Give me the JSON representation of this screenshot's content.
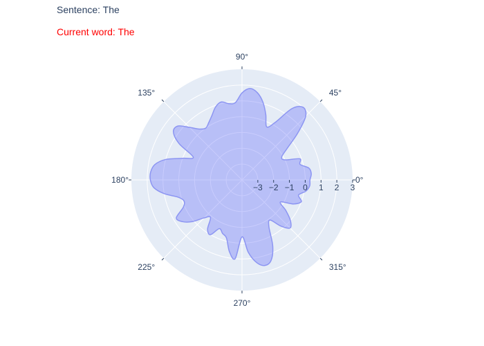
{
  "annotations": {
    "sentence": "Sentence: The",
    "current_word": "Current word: The"
  },
  "colors": {
    "polar_bg": "#e5ecf6",
    "grid": "#ffffff",
    "fill": "rgba(99,110,250,0.35)",
    "line": "#8c95f2",
    "text": "#2a3f5f",
    "current_word": "#ff0000"
  },
  "chart_data": {
    "type": "area",
    "subtype": "polar",
    "title": "",
    "radial_range": [
      -4,
      3
    ],
    "radial_ticks": [
      -3,
      -2,
      -1,
      0,
      1,
      2,
      3
    ],
    "radial_tick_labels": [
      "−3",
      "−2",
      "−1",
      "0",
      "1",
      "2",
      "3"
    ],
    "angular_ticks": [
      0,
      45,
      90,
      135,
      180,
      225,
      270,
      315
    ],
    "angular_tick_labels": [
      "0°",
      "45°",
      "90°",
      "135°",
      "180°",
      "225°",
      "270°",
      "315°"
    ],
    "grid": true,
    "series": [
      {
        "theta": [
          0,
          5,
          10,
          15,
          20,
          25,
          30,
          35,
          40,
          45,
          50,
          55,
          60,
          65,
          70,
          75,
          80,
          85,
          90,
          95,
          100,
          105,
          110,
          115,
          120,
          125,
          130,
          135,
          140,
          145,
          150,
          155,
          160,
          165,
          170,
          175,
          180,
          185,
          190,
          195,
          200,
          205,
          210,
          215,
          220,
          225,
          230,
          235,
          240,
          245,
          250,
          255,
          260,
          265,
          270,
          275,
          280,
          285,
          290,
          295,
          300,
          305,
          310,
          315,
          320,
          325,
          330,
          335,
          340,
          345,
          350,
          355
        ],
        "r": [
          0.3,
          0.4,
          0.3,
          -0.2,
          -0.1,
          -1.0,
          -1.1,
          -0.5,
          0.6,
          1.7,
          2.0,
          1.5,
          0.2,
          -0.3,
          0.4,
          1.1,
          1.6,
          1.8,
          1.5,
          0.9,
          0.9,
          1.1,
          0.9,
          0.5,
          0.2,
          0.0,
          0.2,
          0.7,
          1.3,
          1.3,
          0.6,
          -0.6,
          0.0,
          1.0,
          1.6,
          1.8,
          1.8,
          1.6,
          1.0,
          0.2,
          -0.1,
          0.1,
          0.8,
          0.6,
          0.1,
          -0.6,
          -0.9,
          -0.2,
          0.0,
          -0.6,
          -0.4,
          -0.2,
          0.6,
          1.0,
          -0.4,
          0.6,
          1.3,
          1.6,
          1.4,
          0.6,
          -0.6,
          -0.9,
          -0.2,
          0.3,
          0.0,
          -0.6,
          -1.2,
          -0.4,
          0.0,
          -0.3,
          0.1,
          0.3
        ]
      }
    ]
  }
}
